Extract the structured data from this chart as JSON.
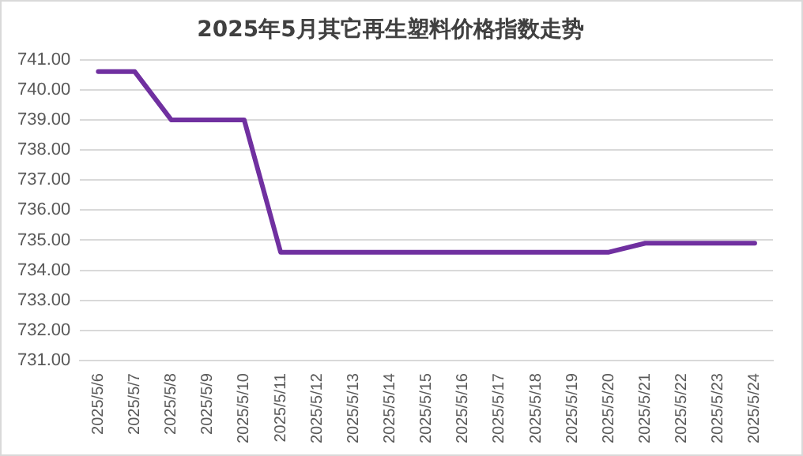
{
  "chart_data": {
    "type": "line",
    "title": "2025年5月其它再生塑料价格指数走势",
    "categories": [
      "2025/5/6",
      "2025/5/7",
      "2025/5/8",
      "2025/5/9",
      "2025/5/10",
      "2025/5/11",
      "2025/5/12",
      "2025/5/13",
      "2025/5/14",
      "2025/5/15",
      "2025/5/16",
      "2025/5/17",
      "2025/5/18",
      "2025/5/19",
      "2025/5/20",
      "2025/5/21",
      "2025/5/22",
      "2025/5/23",
      "2025/5/24"
    ],
    "series": [
      {
        "color": "#7030a0",
        "values": [
          740.6,
          740.6,
          739.0,
          739.0,
          739.0,
          734.6,
          734.6,
          734.6,
          734.6,
          734.6,
          734.6,
          734.6,
          734.6,
          734.6,
          734.6,
          734.9,
          734.9,
          734.9,
          734.9
        ]
      }
    ],
    "ylim": [
      731,
      741
    ],
    "yticks": [
      {
        "value": 731,
        "label": "731.00"
      },
      {
        "value": 732,
        "label": "732.00"
      },
      {
        "value": 733,
        "label": "733.00"
      },
      {
        "value": 734,
        "label": "734.00"
      },
      {
        "value": 735,
        "label": "735.00"
      },
      {
        "value": 736,
        "label": "736.00"
      },
      {
        "value": 737,
        "label": "737.00"
      },
      {
        "value": 738,
        "label": "738.00"
      },
      {
        "value": 739,
        "label": "739.00"
      },
      {
        "value": 740,
        "label": "740.00"
      },
      {
        "value": 741,
        "label": "741.00"
      }
    ],
    "grid": "y",
    "legend": false,
    "marker": "none",
    "line_style": "solid"
  }
}
